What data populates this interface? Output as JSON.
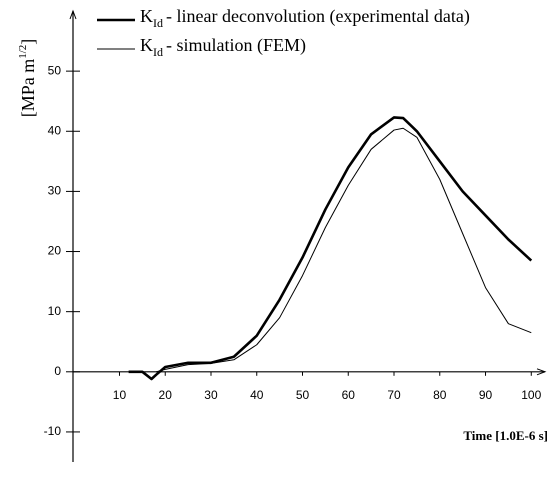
{
  "chart_data": {
    "type": "line",
    "quantity": {
      "symbol": "K",
      "subscript": "Id"
    },
    "ylabel": [
      "[MPa m",
      "1/2",
      "]"
    ],
    "xlabel": "Time [1.0E-6 s]",
    "x": [
      12,
      15,
      17,
      18,
      20,
      25,
      30,
      35,
      40,
      45,
      50,
      55,
      60,
      65,
      70,
      72,
      75,
      80,
      85,
      90,
      95,
      100
    ],
    "series": [
      {
        "name": "- linear deconvolution (experimental data)",
        "color": "#000000",
        "width": 2.6,
        "values": [
          0,
          0,
          -1.2,
          -0.5,
          0.8,
          1.5,
          1.5,
          2.5,
          6,
          12,
          19,
          27,
          34,
          39.5,
          42.3,
          42.2,
          40,
          35,
          30,
          26,
          22,
          18.5
        ]
      },
      {
        "name": "- simulation (FEM)",
        "color": "#000000",
        "width": 1,
        "values": [
          null,
          null,
          null,
          0,
          0.4,
          1.2,
          1.4,
          2,
          4.5,
          9,
          16,
          24,
          31,
          37,
          40.2,
          40.5,
          39,
          32,
          23,
          14,
          8,
          6.5
        ]
      }
    ],
    "xlim": [
      -3,
      103
    ],
    "ylim": [
      -15,
      60
    ],
    "xticks": [
      10,
      20,
      30,
      40,
      50,
      60,
      70,
      80,
      90,
      100
    ],
    "yticks": [
      -10,
      0,
      10,
      20,
      30,
      40,
      50
    ],
    "grid": false
  }
}
